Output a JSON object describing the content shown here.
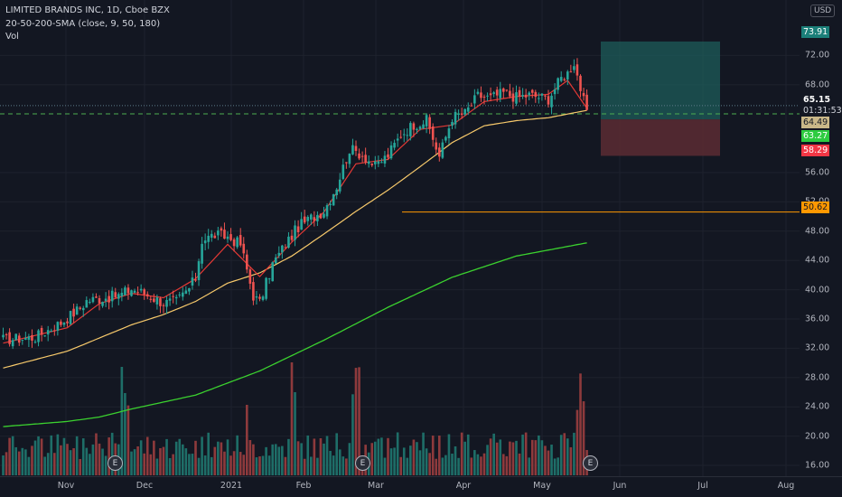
{
  "legend": {
    "symbol": "LIMITED BRANDS INC, 1D, Cboe BZX",
    "indicator": "20-50-200-SMA (close, 9, 50, 180)",
    "volume": "Vol"
  },
  "currency": "USD",
  "earnings_marker": "E",
  "price_badges": {
    "target": "73.91",
    "current_price": "65.15",
    "countdown": "01:31:53",
    "sma_value": "64.49",
    "entry": "63.27",
    "stop": "58.29",
    "level": "50.62"
  },
  "colors": {
    "background": "#131722",
    "up": "#26a69a",
    "down": "#ef5350",
    "sma_fast": "#e53935",
    "sma_mid": "#f7c96b",
    "sma_slow": "#3bd12f",
    "target_zone": "#1d5c5a",
    "stop_zone": "#5c2b33",
    "level_line": "#ff9800",
    "entry_line": "#4caf50"
  },
  "chart_data": {
    "type": "candlestick",
    "title": "LIMITED BRANDS INC, 1D, Cboe BZX",
    "ylim": [
      14.5,
      77
    ],
    "y_ticks": [
      16,
      20,
      24,
      28,
      32,
      36,
      40,
      44,
      48,
      52,
      56,
      68,
      72
    ],
    "x_ticks": [
      "Nov",
      "Dec",
      "2021",
      "Feb",
      "Mar",
      "Apr",
      "May",
      "Jun",
      "Jul",
      "Aug"
    ],
    "waypoints": [
      [
        0,
        33.2
      ],
      [
        10,
        33.5
      ],
      [
        18,
        35.5
      ],
      [
        24,
        37.5
      ],
      [
        26,
        38.5
      ],
      [
        30,
        38.8
      ],
      [
        36,
        39.2
      ],
      [
        40,
        40.1
      ],
      [
        44,
        39.5
      ],
      [
        50,
        38.2
      ],
      [
        54,
        38.4
      ],
      [
        58,
        40.2
      ],
      [
        60,
        41.6
      ],
      [
        62,
        46.8
      ],
      [
        66,
        47.5
      ],
      [
        70,
        47.2
      ],
      [
        74,
        46.2
      ],
      [
        78,
        39.2
      ],
      [
        80,
        38.2
      ],
      [
        84,
        43.5
      ],
      [
        88,
        46.2
      ],
      [
        92,
        48.6
      ],
      [
        96,
        49.8
      ],
      [
        100,
        50.8
      ],
      [
        104,
        54.2
      ],
      [
        108,
        59.2
      ],
      [
        112,
        58.5
      ],
      [
        116,
        56.8
      ],
      [
        120,
        58.4
      ],
      [
        124,
        61.2
      ],
      [
        128,
        62.6
      ],
      [
        132,
        63.1
      ],
      [
        136,
        58.2
      ],
      [
        140,
        63.6
      ],
      [
        144,
        64.1
      ],
      [
        148,
        66.5
      ],
      [
        152,
        66.2
      ],
      [
        156,
        66.9
      ],
      [
        160,
        66.3
      ],
      [
        164,
        66.6
      ],
      [
        170,
        66.1
      ],
      [
        174,
        68.9
      ],
      [
        176,
        69.6
      ],
      [
        178,
        71.1
      ],
      [
        180,
        67.5
      ],
      [
        182,
        63.9
      ]
    ],
    "sma_fast_anchors": [
      [
        0,
        32.7
      ],
      [
        20,
        34.8
      ],
      [
        30,
        38.1
      ],
      [
        40,
        39.5
      ],
      [
        50,
        38.9
      ],
      [
        60,
        41.5
      ],
      [
        70,
        46.2
      ],
      [
        80,
        41.8
      ],
      [
        90,
        46.5
      ],
      [
        100,
        50.6
      ],
      [
        110,
        57.2
      ],
      [
        120,
        57.8
      ],
      [
        130,
        61.9
      ],
      [
        140,
        62.5
      ],
      [
        150,
        65.7
      ],
      [
        160,
        66.4
      ],
      [
        170,
        66.7
      ],
      [
        176,
        68.6
      ],
      [
        182,
        64.8
      ]
    ],
    "sma_mid_anchors": [
      [
        0,
        29.3
      ],
      [
        20,
        31.6
      ],
      [
        30,
        33.4
      ],
      [
        40,
        35.2
      ],
      [
        50,
        36.6
      ],
      [
        60,
        38.4
      ],
      [
        70,
        40.9
      ],
      [
        80,
        42.3
      ],
      [
        90,
        44.6
      ],
      [
        100,
        47.6
      ],
      [
        110,
        50.7
      ],
      [
        120,
        53.6
      ],
      [
        130,
        56.8
      ],
      [
        140,
        60.1
      ],
      [
        150,
        62.4
      ],
      [
        160,
        63.1
      ],
      [
        170,
        63.5
      ],
      [
        176,
        64.0
      ],
      [
        182,
        64.5
      ]
    ],
    "sma_slow_anchors": [
      [
        0,
        21.3
      ],
      [
        20,
        22.0
      ],
      [
        30,
        22.6
      ],
      [
        40,
        23.7
      ],
      [
        60,
        25.6
      ],
      [
        80,
        28.9
      ],
      [
        100,
        33.1
      ],
      [
        120,
        37.6
      ],
      [
        140,
        41.7
      ],
      [
        160,
        44.6
      ],
      [
        182,
        46.4
      ]
    ],
    "risk_reward": {
      "target": 73.91,
      "entry": 63.27,
      "stop": 58.29
    },
    "horizontal_level": 50.62,
    "current_price": 65.15,
    "earnings_bars": [
      38,
      110,
      180
    ]
  }
}
